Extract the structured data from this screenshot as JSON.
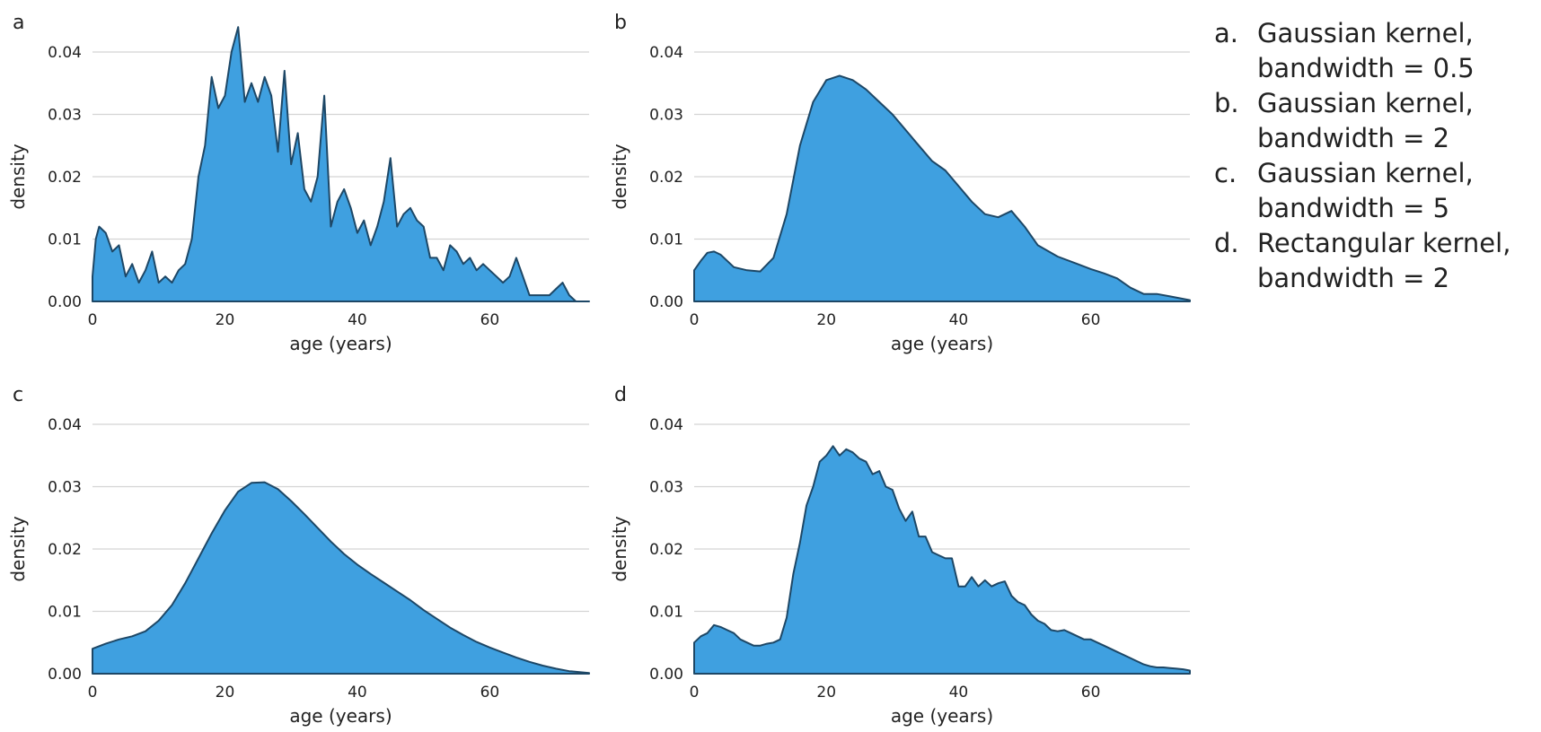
{
  "chart_data": [
    {
      "type": "area",
      "panel_label": "a",
      "xlabel": "age (years)",
      "ylabel": "density",
      "xlim": [
        0,
        75
      ],
      "ylim": [
        0,
        0.04
      ],
      "x_ticks": [
        0,
        20,
        40,
        60
      ],
      "y_ticks": [
        0.0,
        0.01,
        0.02,
        0.03,
        0.04
      ],
      "y_tick_labels": [
        "0.00",
        "0.01",
        "0.02",
        "0.03",
        "0.04"
      ],
      "grid": "horizontal",
      "x": [
        0,
        0.5,
        1,
        2,
        3,
        4,
        5,
        6,
        7,
        8,
        9,
        10,
        11,
        12,
        13,
        14,
        15,
        16,
        17,
        18,
        19,
        20,
        21,
        22,
        23,
        24,
        25,
        26,
        27,
        28,
        29,
        30,
        31,
        32,
        33,
        34,
        35,
        36,
        37,
        38,
        39,
        40,
        41,
        42,
        43,
        44,
        45,
        46,
        47,
        48,
        49,
        50,
        51,
        52,
        53,
        54,
        55,
        56,
        57,
        58,
        59,
        60,
        61,
        62,
        63,
        64,
        65,
        66,
        67,
        68,
        69,
        70,
        71,
        72,
        73,
        74,
        75
      ],
      "y": [
        0.004,
        0.01,
        0.012,
        0.011,
        0.008,
        0.009,
        0.004,
        0.006,
        0.003,
        0.005,
        0.008,
        0.003,
        0.004,
        0.003,
        0.005,
        0.006,
        0.01,
        0.02,
        0.025,
        0.036,
        0.031,
        0.033,
        0.04,
        0.044,
        0.032,
        0.035,
        0.032,
        0.036,
        0.033,
        0.024,
        0.037,
        0.022,
        0.027,
        0.018,
        0.016,
        0.02,
        0.033,
        0.012,
        0.016,
        0.018,
        0.015,
        0.011,
        0.013,
        0.009,
        0.012,
        0.016,
        0.023,
        0.012,
        0.014,
        0.015,
        0.013,
        0.012,
        0.007,
        0.007,
        0.005,
        0.009,
        0.008,
        0.006,
        0.007,
        0.005,
        0.006,
        0.005,
        0.004,
        0.003,
        0.004,
        0.007,
        0.004,
        0.001,
        0.001,
        0.001,
        0.001,
        0.002,
        0.003,
        0.001,
        0.0,
        0.0,
        0.0
      ]
    },
    {
      "type": "area",
      "panel_label": "b",
      "xlabel": "age (years)",
      "ylabel": "density",
      "xlim": [
        0,
        75
      ],
      "ylim": [
        0,
        0.04
      ],
      "x_ticks": [
        0,
        20,
        40,
        60
      ],
      "y_ticks": [
        0.0,
        0.01,
        0.02,
        0.03,
        0.04
      ],
      "y_tick_labels": [
        "0.00",
        "0.01",
        "0.02",
        "0.03",
        "0.04"
      ],
      "grid": "horizontal",
      "x": [
        0,
        1,
        2,
        3,
        4,
        5,
        6,
        8,
        10,
        12,
        14,
        16,
        18,
        20,
        22,
        24,
        26,
        28,
        30,
        32,
        34,
        36,
        38,
        40,
        42,
        44,
        46,
        48,
        50,
        52,
        55,
        58,
        60,
        62,
        64,
        66,
        68,
        70,
        72,
        75
      ],
      "y": [
        0.005,
        0.0065,
        0.0078,
        0.008,
        0.0075,
        0.0065,
        0.0055,
        0.005,
        0.0048,
        0.007,
        0.014,
        0.025,
        0.032,
        0.0355,
        0.0362,
        0.0355,
        0.034,
        0.032,
        0.03,
        0.0275,
        0.025,
        0.0225,
        0.021,
        0.0185,
        0.016,
        0.014,
        0.0135,
        0.0145,
        0.012,
        0.009,
        0.0072,
        0.006,
        0.0052,
        0.0045,
        0.0037,
        0.0022,
        0.0012,
        0.0012,
        0.0008,
        0.0002
      ]
    },
    {
      "type": "area",
      "panel_label": "c",
      "xlabel": "age (years)",
      "ylabel": "density",
      "xlim": [
        0,
        75
      ],
      "ylim": [
        0,
        0.04
      ],
      "x_ticks": [
        0,
        20,
        40,
        60
      ],
      "y_ticks": [
        0.0,
        0.01,
        0.02,
        0.03,
        0.04
      ],
      "y_tick_labels": [
        "0.00",
        "0.01",
        "0.02",
        "0.03",
        "0.04"
      ],
      "grid": "horizontal",
      "x": [
        0,
        2,
        4,
        6,
        8,
        10,
        12,
        14,
        16,
        18,
        20,
        22,
        24,
        26,
        28,
        30,
        32,
        34,
        36,
        38,
        40,
        42,
        44,
        46,
        48,
        50,
        52,
        54,
        56,
        58,
        60,
        62,
        64,
        66,
        68,
        70,
        72,
        75
      ],
      "y": [
        0.004,
        0.0048,
        0.0055,
        0.006,
        0.0068,
        0.0085,
        0.011,
        0.0145,
        0.0185,
        0.0225,
        0.0262,
        0.0292,
        0.0306,
        0.0307,
        0.0296,
        0.0277,
        0.0256,
        0.0234,
        0.0212,
        0.0192,
        0.0175,
        0.016,
        0.0146,
        0.0132,
        0.0118,
        0.0102,
        0.0088,
        0.0074,
        0.0062,
        0.0051,
        0.0042,
        0.0034,
        0.0026,
        0.0019,
        0.0013,
        0.0008,
        0.0004,
        0.0001
      ]
    },
    {
      "type": "area",
      "panel_label": "d",
      "xlabel": "age (years)",
      "ylabel": "density",
      "xlim": [
        0,
        75
      ],
      "ylim": [
        0,
        0.04
      ],
      "x_ticks": [
        0,
        20,
        40,
        60
      ],
      "y_ticks": [
        0.0,
        0.01,
        0.02,
        0.03,
        0.04
      ],
      "y_tick_labels": [
        "0.00",
        "0.01",
        "0.02",
        "0.03",
        "0.04"
      ],
      "grid": "horizontal",
      "x": [
        0,
        1,
        2,
        3,
        4,
        5,
        6,
        7,
        8,
        9,
        10,
        11,
        12,
        13,
        14,
        15,
        16,
        17,
        18,
        19,
        20,
        21,
        22,
        23,
        24,
        25,
        26,
        27,
        28,
        29,
        30,
        31,
        32,
        33,
        34,
        35,
        36,
        37,
        38,
        39,
        40,
        41,
        42,
        43,
        44,
        45,
        46,
        47,
        48,
        49,
        50,
        51,
        52,
        53,
        54,
        55,
        56,
        57,
        58,
        59,
        60,
        61,
        62,
        63,
        64,
        65,
        66,
        67,
        68,
        69,
        70,
        71,
        72,
        73,
        74,
        75
      ],
      "y": [
        0.005,
        0.006,
        0.0065,
        0.0078,
        0.0075,
        0.007,
        0.0065,
        0.0055,
        0.005,
        0.0045,
        0.0045,
        0.0048,
        0.005,
        0.0055,
        0.009,
        0.016,
        0.021,
        0.027,
        0.03,
        0.034,
        0.035,
        0.0365,
        0.035,
        0.036,
        0.0355,
        0.0345,
        0.034,
        0.032,
        0.0325,
        0.03,
        0.0295,
        0.0265,
        0.0245,
        0.026,
        0.022,
        0.022,
        0.0195,
        0.019,
        0.0185,
        0.0185,
        0.014,
        0.014,
        0.0155,
        0.014,
        0.015,
        0.014,
        0.0145,
        0.0148,
        0.0125,
        0.0115,
        0.011,
        0.0095,
        0.0085,
        0.008,
        0.007,
        0.0068,
        0.007,
        0.0065,
        0.006,
        0.0055,
        0.0055,
        0.005,
        0.0045,
        0.004,
        0.0035,
        0.003,
        0.0025,
        0.002,
        0.0015,
        0.0012,
        0.001,
        0.001,
        0.0009,
        0.0008,
        0.0007,
        0.0005
      ]
    }
  ],
  "legend": {
    "items": [
      {
        "key": "a.",
        "text": "Gaussian kernel,\nbandwidth = 0.5"
      },
      {
        "key": "b.",
        "text": "Gaussian kernel,\nbandwidth = 2"
      },
      {
        "key": "c.",
        "text": "Gaussian kernel,\nbandwidth = 5"
      },
      {
        "key": "d.",
        "text": "Rectangular kernel,\nbandwidth = 2"
      }
    ]
  }
}
